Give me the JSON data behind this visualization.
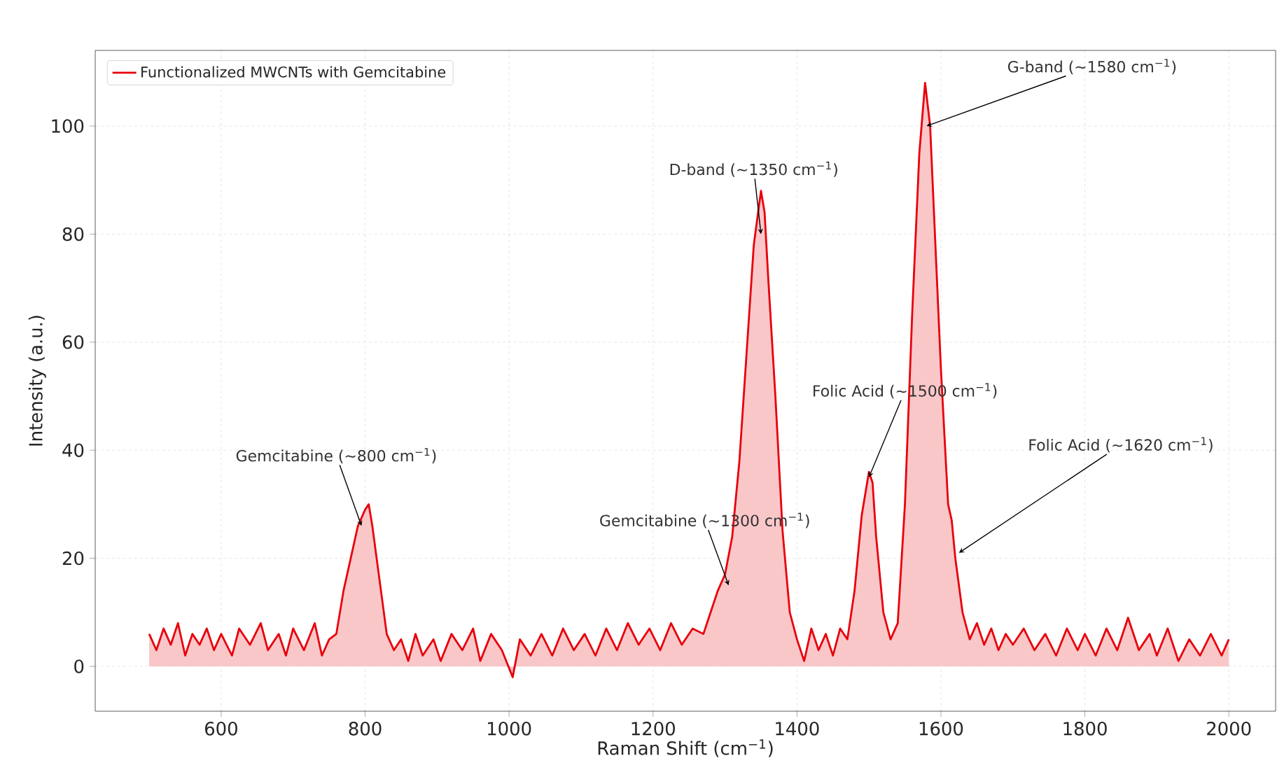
{
  "chart_data": {
    "type": "area",
    "xlabel": "Raman Shift (cm$^{−1}$)",
    "ylabel": "Intensity (a.u.)",
    "x": [
      500,
      510,
      520,
      530,
      540,
      550,
      560,
      570,
      580,
      590,
      600,
      615,
      625,
      640,
      655,
      665,
      680,
      690,
      700,
      715,
      730,
      740,
      750,
      760,
      770,
      780,
      790,
      800,
      805,
      810,
      820,
      830,
      840,
      850,
      860,
      870,
      880,
      895,
      905,
      920,
      935,
      950,
      960,
      975,
      990,
      1005,
      1015,
      1030,
      1045,
      1060,
      1075,
      1090,
      1105,
      1120,
      1135,
      1150,
      1165,
      1180,
      1195,
      1210,
      1225,
      1240,
      1255,
      1270,
      1280,
      1290,
      1300,
      1310,
      1320,
      1330,
      1340,
      1345,
      1350,
      1355,
      1360,
      1370,
      1380,
      1390,
      1400,
      1410,
      1420,
      1430,
      1440,
      1450,
      1460,
      1470,
      1480,
      1490,
      1500,
      1505,
      1510,
      1520,
      1530,
      1540,
      1550,
      1560,
      1570,
      1578,
      1585,
      1590,
      1600,
      1610,
      1615,
      1620,
      1630,
      1640,
      1650,
      1660,
      1670,
      1680,
      1690,
      1700,
      1715,
      1730,
      1745,
      1760,
      1775,
      1790,
      1800,
      1815,
      1830,
      1845,
      1860,
      1875,
      1890,
      1900,
      1915,
      1930,
      1945,
      1960,
      1975,
      1990,
      2000
    ],
    "series": [
      {
        "name": "Functionalized MWCNTs with Gemcitabine",
        "color": "#e8000b",
        "values": [
          6,
          3,
          7,
          4,
          8,
          2,
          6,
          4,
          7,
          3,
          6,
          2,
          7,
          4,
          8,
          3,
          6,
          2,
          7,
          3,
          8,
          2,
          5,
          6,
          14,
          20,
          26,
          29,
          30,
          26,
          16,
          6,
          3,
          5,
          1,
          6,
          2,
          5,
          1,
          6,
          3,
          7,
          1,
          6,
          3,
          -2,
          5,
          2,
          6,
          2,
          7,
          3,
          6,
          2,
          7,
          3,
          8,
          4,
          7,
          3,
          8,
          4,
          7,
          6,
          10,
          14,
          17,
          24,
          38,
          58,
          78,
          83,
          88,
          84,
          72,
          50,
          25,
          10,
          5,
          1,
          7,
          3,
          6,
          2,
          7,
          5,
          14,
          28,
          36,
          34,
          24,
          10,
          5,
          8,
          30,
          65,
          95,
          108,
          100,
          85,
          55,
          30,
          27,
          20,
          10,
          5,
          8,
          4,
          7,
          3,
          6,
          4,
          7,
          3,
          6,
          2,
          7,
          3,
          6,
          2,
          7,
          3,
          9,
          3,
          6,
          2,
          7,
          1,
          5,
          2,
          6,
          2,
          5
        ]
      }
    ],
    "annotations": [
      {
        "text": "Gemcitabine (~800 cm$^{−1}$)",
        "x": 795,
        "y": 26
      },
      {
        "text": "D-band (~1350 cm$^{−1}$)",
        "x": 1350,
        "y": 80
      },
      {
        "text": "Gemcitabine (~1300 cm$^{−1}$)",
        "x": 1305,
        "y": 15
      },
      {
        "text": "Folic Acid (~1500 cm$^{−1}$)",
        "x": 1500,
        "y": 35
      },
      {
        "text": "G-band (~1580 cm$^{−1}$)",
        "x": 1580,
        "y": 100
      },
      {
        "text": "Folic Acid (~1620 cm$^{−1}$)",
        "x": 1625,
        "y": 21
      }
    ],
    "xlim": [
      425,
      2065
    ],
    "ylim": [
      -8.3,
      114
    ],
    "xticks": [
      600,
      800,
      1000,
      1200,
      1400,
      1600,
      1800,
      2000
    ],
    "yticks": [
      0,
      20,
      40,
      60,
      80,
      100
    ],
    "grid": true,
    "legend": "top left"
  }
}
